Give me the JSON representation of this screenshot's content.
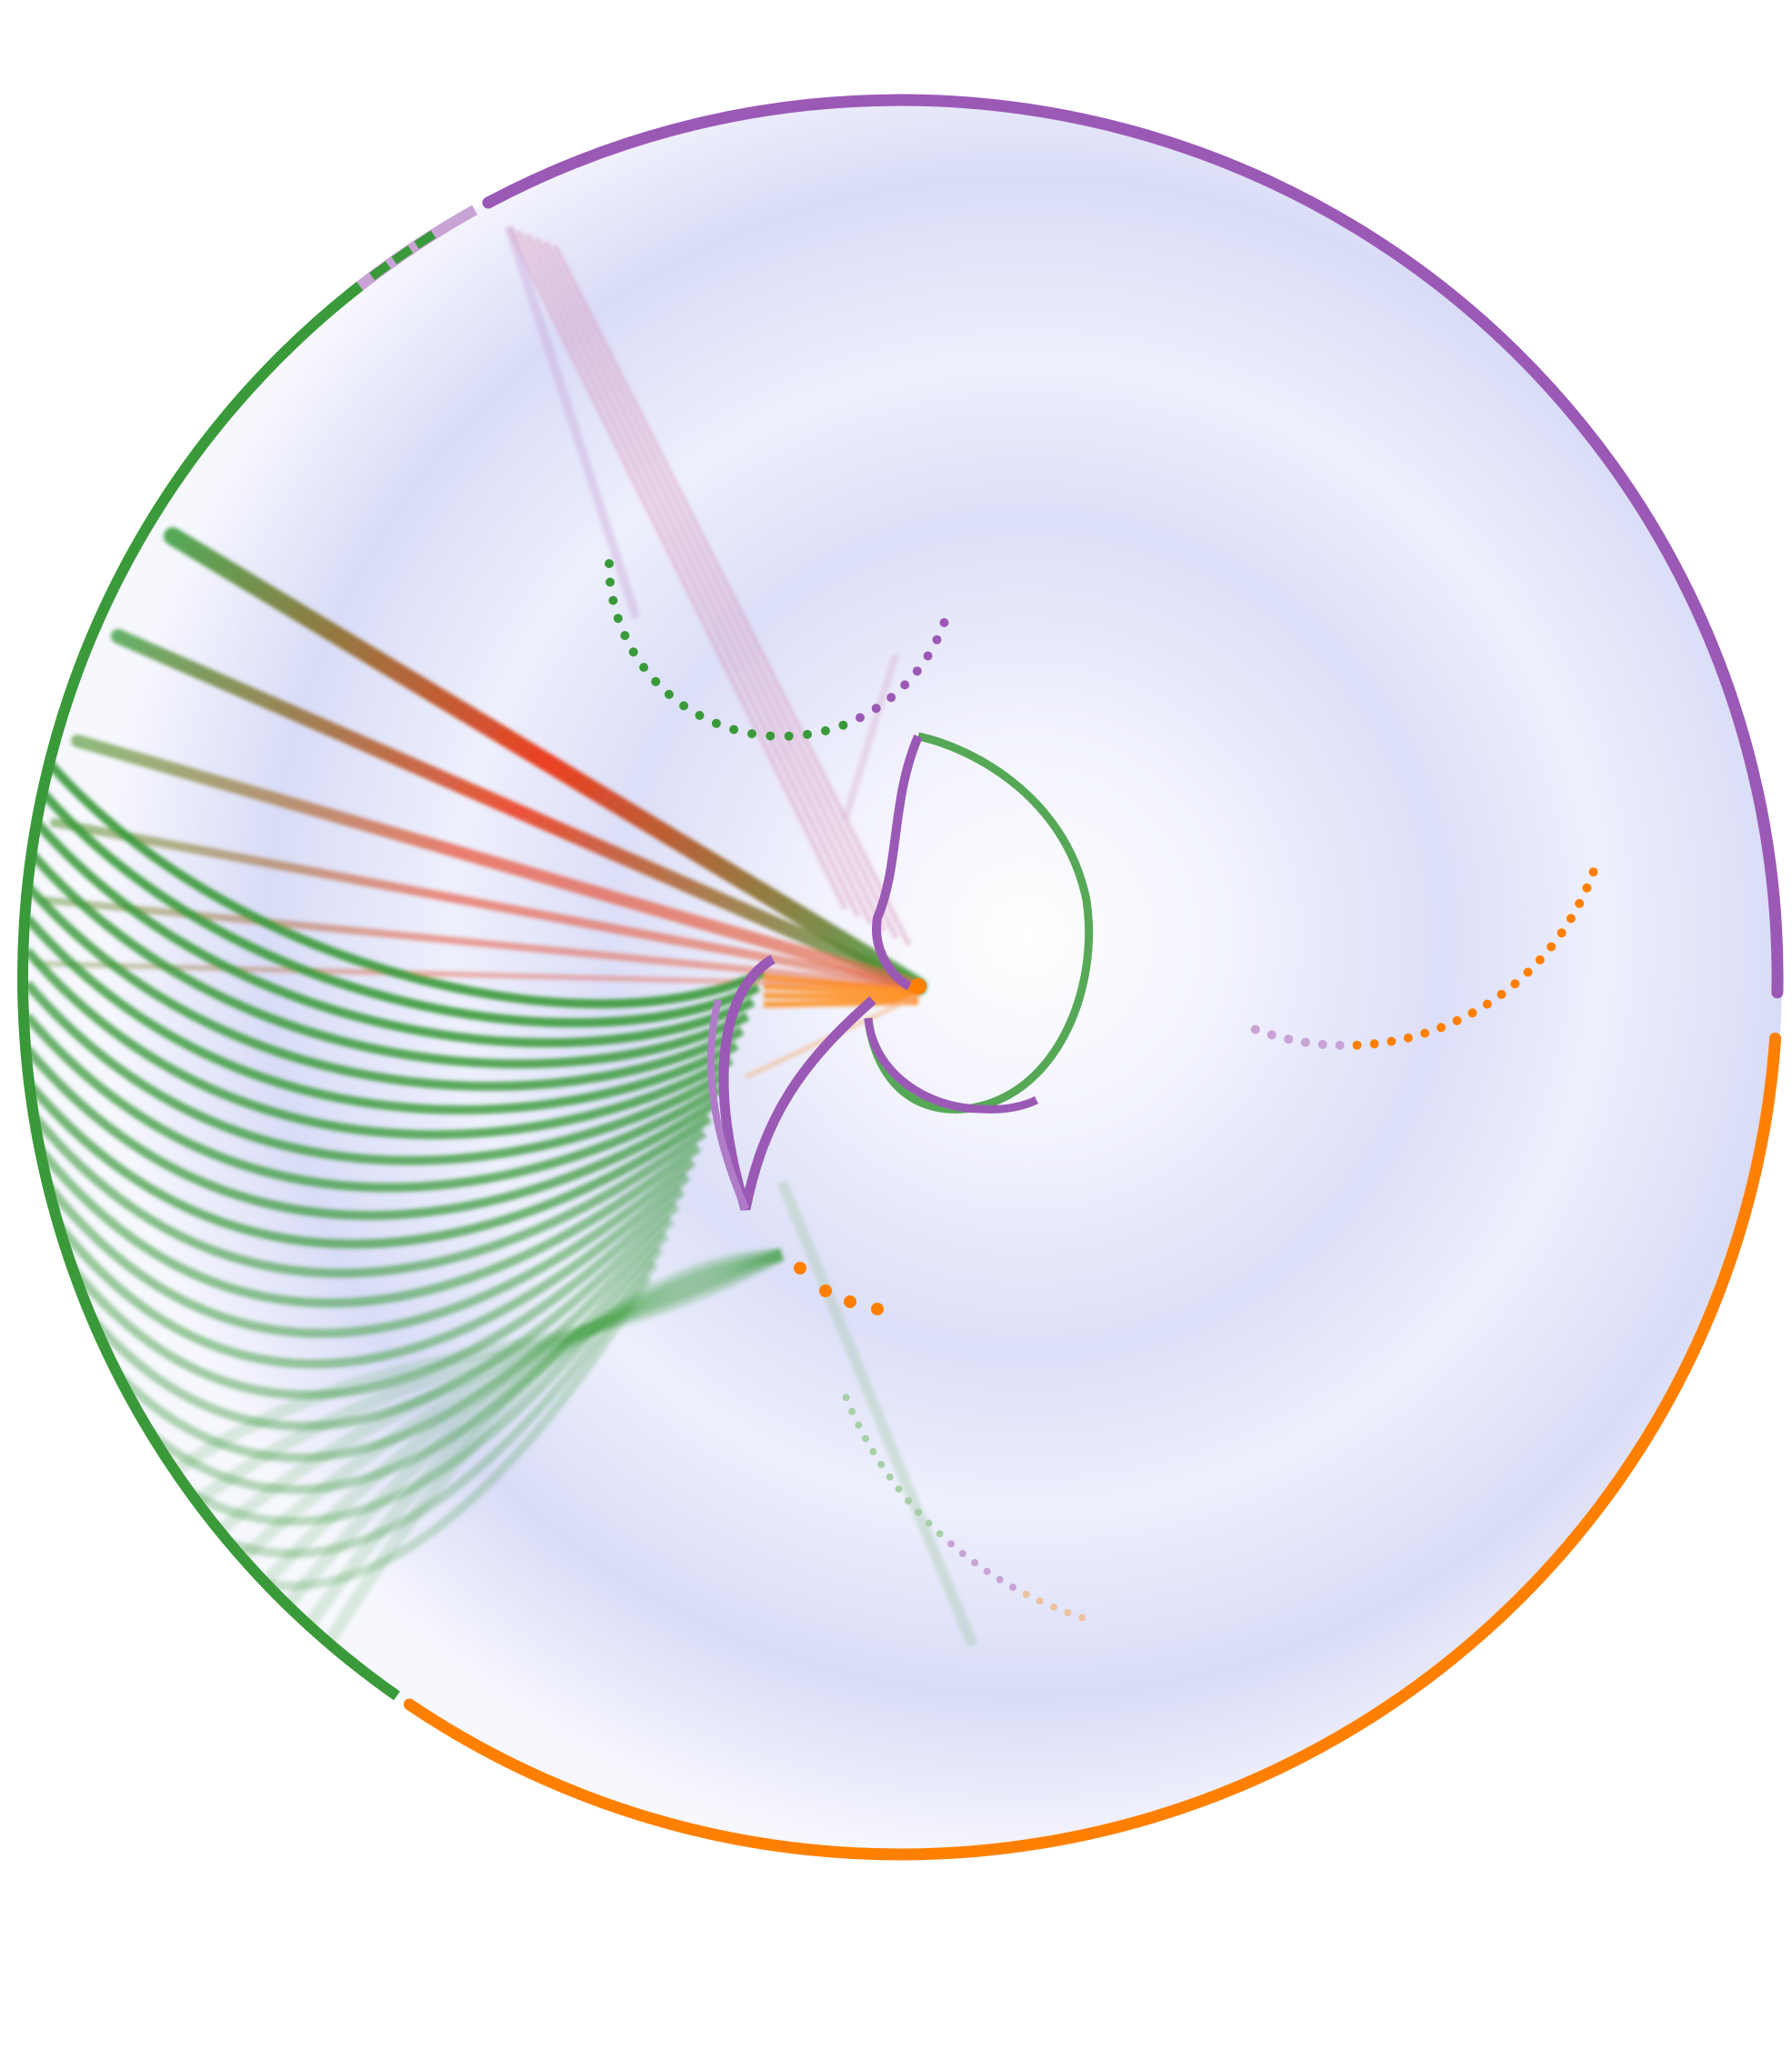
{
  "diagram": {
    "type": "hyperbolic-graph-embedding",
    "background": "#ffffff",
    "disk_gradient": [
      "#ffffff",
      "#eef0fd",
      "#d5d8f6"
    ],
    "groups": [
      {
        "id": "purple",
        "color": "#9b59b6"
      },
      {
        "id": "orange",
        "color": "#ff8000"
      },
      {
        "id": "green",
        "color": "#3a9a3a"
      }
    ],
    "highlight_color": "#ee2200",
    "has_text": false
  }
}
